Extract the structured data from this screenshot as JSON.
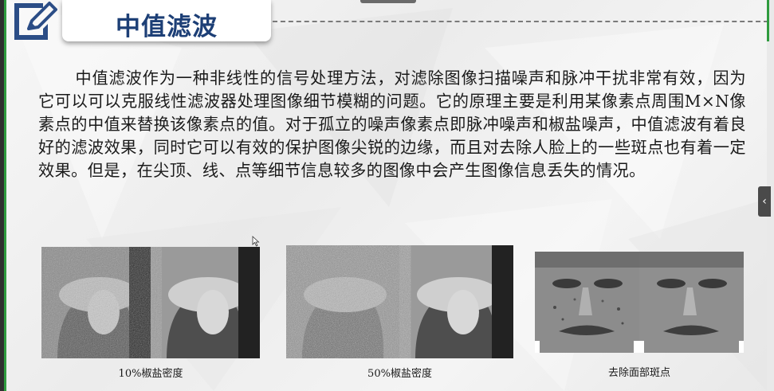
{
  "slide": {
    "title": "中值滤波",
    "paragraph": "中值滤波作为一种非线性的信号处理方法，对滤除图像扫描噪声和脉冲干扰非常有效，因为它可以可以克服线性滤波器处理图像细节模糊的问题。它的原理主要是利用某像素点周围M×N像素点的中值来替换该像素点的值。对于孤立的噪声像素点即脉冲噪声和椒盐噪声，中值滤波有着良好的滤波效果，同时它可以有效的保护图像尖锐的边缘，而且对去除人脸上的一些斑点也有着一定效果。但是，在尖顶、线、点等细节信息较多的图像中会产生图像信息丢失的情况。",
    "figures": [
      {
        "caption": "10%椒盐密度"
      },
      {
        "caption": "50%椒盐密度"
      },
      {
        "caption": "去除面部斑点"
      }
    ]
  },
  "icons": {
    "header": "edit-pencil-icon",
    "side_tab": "chevron-left-icon",
    "cursor": "mouse-pointer-icon"
  },
  "colors": {
    "title": "#1d3f76",
    "accent_green": "#2e9b3e",
    "icon_blue": "#2b4d86"
  }
}
